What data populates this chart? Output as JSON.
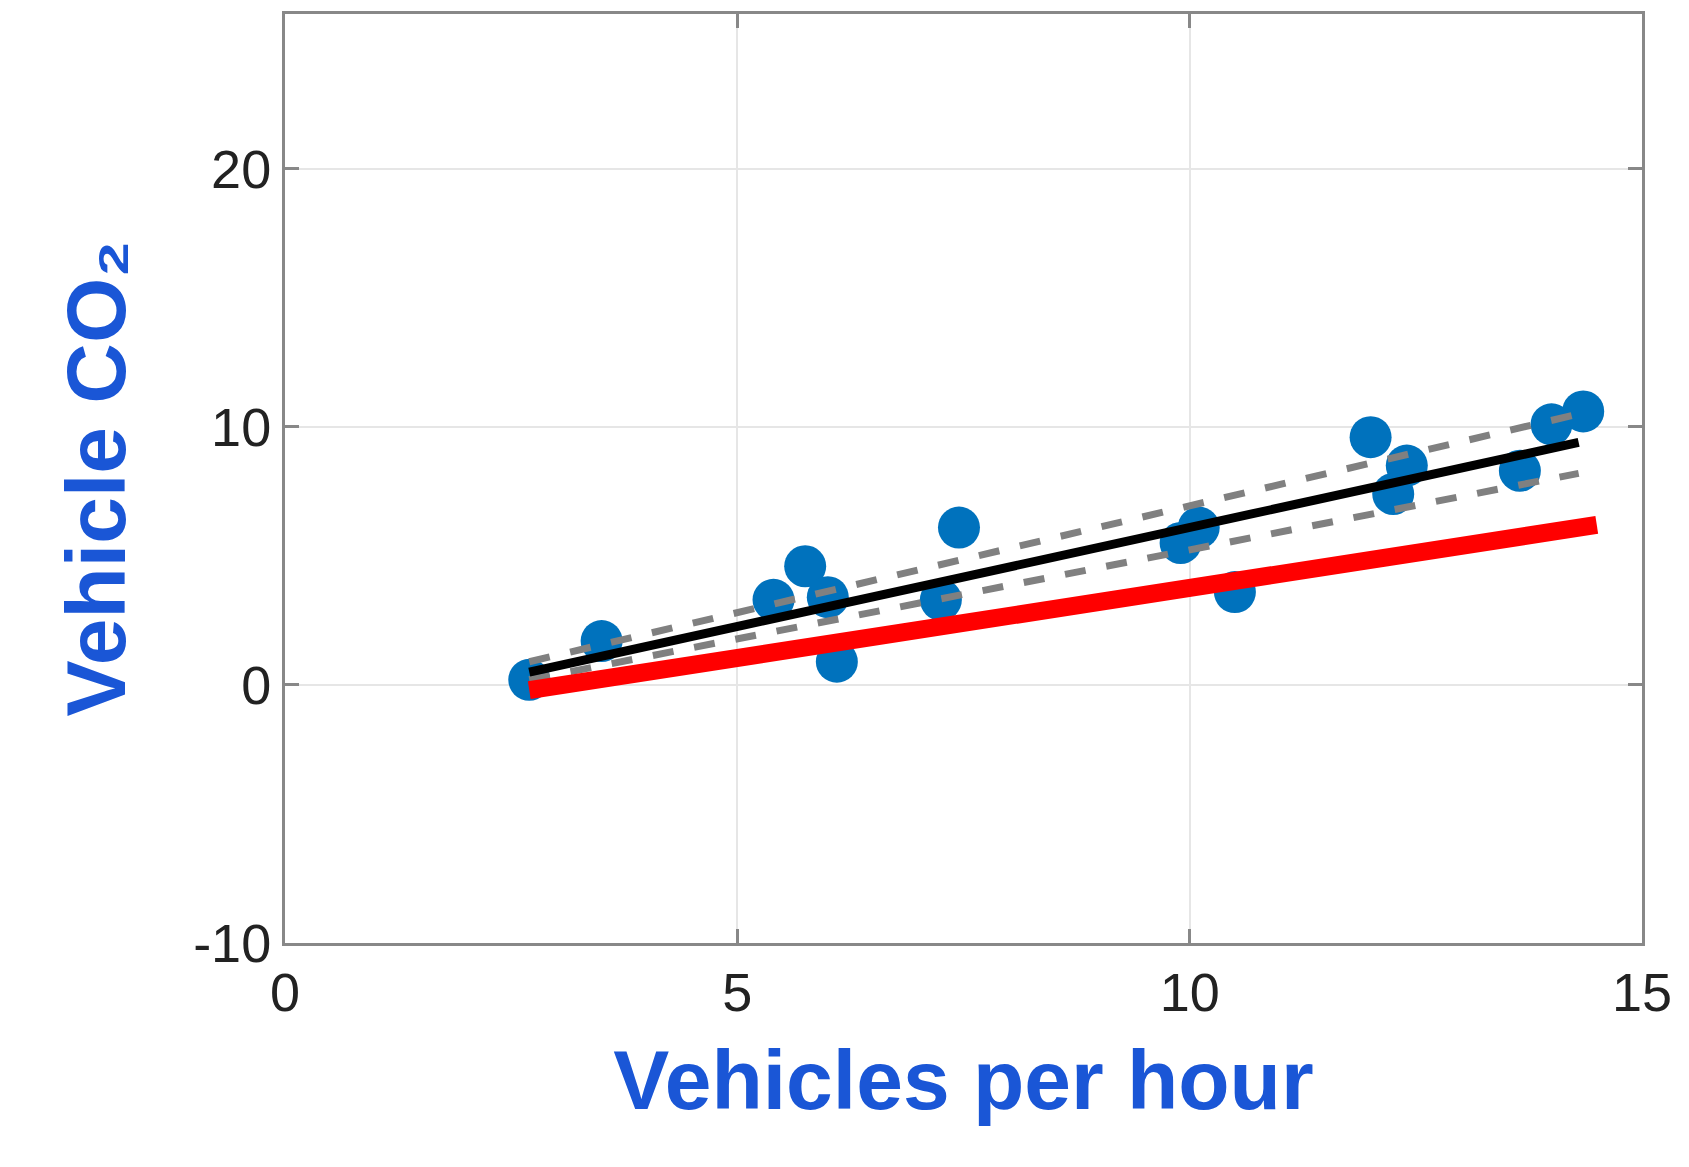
{
  "chart_data": {
    "type": "scatter",
    "xlabel": "Vehicles per hour",
    "ylabel": "Vehicle CO₂",
    "xlim": [
      0,
      15
    ],
    "xticks": [
      0,
      5,
      10,
      15
    ],
    "ylim": [
      -10,
      26
    ],
    "yticks": [
      -10,
      0,
      10,
      20
    ],
    "grid": true,
    "marker": "circle",
    "series": [
      {
        "color": "#0072bd",
        "x": [
          2.7,
          3.5,
          5.4,
          5.75,
          6,
          6.1,
          7.25,
          7.45,
          9.9,
          10.1,
          10.5,
          12,
          12.4,
          12.25,
          13.65,
          14,
          14.35
        ],
        "values": [
          0.2,
          1.7,
          3.3,
          4.6,
          3.4,
          0.9,
          3.3,
          6.1,
          5.5,
          6.1,
          3.6,
          9.6,
          8.5,
          7.4,
          8.3,
          10.1,
          10.6
        ]
      },
      {
        "type": "line",
        "color": "#808080",
        "line_style": "dashed",
        "marker": "none",
        "x": [
          2.7,
          14.3
        ],
        "values": [
          0.9,
          10.5
        ]
      },
      {
        "type": "line",
        "color": "#808080",
        "line_style": "dashed",
        "marker": "none",
        "x": [
          2.7,
          14.3
        ],
        "values": [
          0.2,
          8.2
        ]
      },
      {
        "type": "line",
        "color": "#000000",
        "line_style": "solid",
        "marker": "none",
        "x": [
          2.7,
          14.3
        ],
        "values": [
          0.5,
          9.4
        ]
      },
      {
        "type": "line",
        "color": "#ff0000",
        "line_style": "solid",
        "marker": "none",
        "x": [
          2.7,
          14.5
        ],
        "values": [
          -0.2,
          6.2
        ]
      }
    ]
  }
}
